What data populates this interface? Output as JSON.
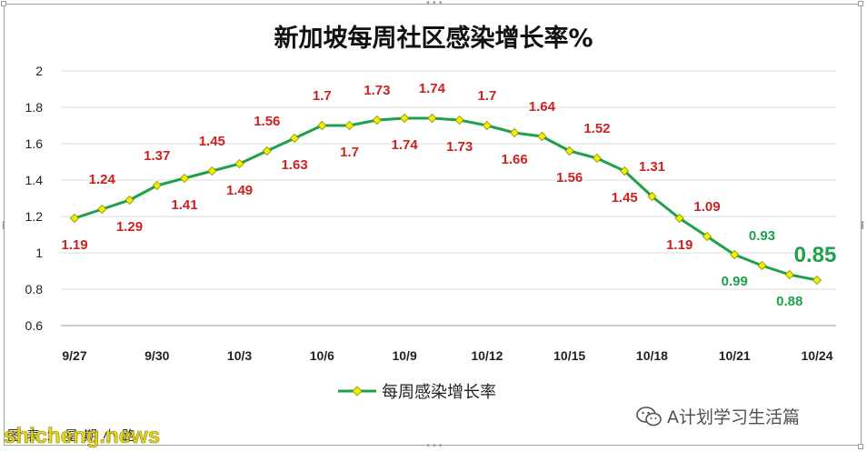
{
  "chart_data": {
    "type": "line",
    "title": "新加坡每周社区感染增长率%",
    "xlabel": "",
    "ylabel": "",
    "x_ticks": [
      "9/27",
      "9/30",
      "10/3",
      "10/6",
      "10/9",
      "10/12",
      "10/15",
      "10/18",
      "10/21",
      "10/24"
    ],
    "y_ticks": [
      "2",
      "1.8",
      "1.6",
      "1.4",
      "1.2",
      "1",
      "0.8",
      "0.6"
    ],
    "ylim": [
      0.6,
      2.0
    ],
    "grid": true,
    "legend_position": "bottom-center",
    "series": [
      {
        "name": "每周感染增长率",
        "color": "#1fa04a",
        "marker_color": "#f2ee00",
        "x": [
          "9/27",
          "9/28",
          "9/29",
          "9/30",
          "10/1",
          "10/2",
          "10/3",
          "10/4",
          "10/5",
          "10/6",
          "10/7",
          "10/8",
          "10/9",
          "10/10",
          "10/11",
          "10/12",
          "10/13",
          "10/14",
          "10/15",
          "10/16",
          "10/17",
          "10/18",
          "10/19",
          "10/20",
          "10/21",
          "10/22",
          "10/23",
          "10/24"
        ],
        "values": [
          1.19,
          1.24,
          1.29,
          1.37,
          1.41,
          1.45,
          1.49,
          1.56,
          1.63,
          1.7,
          1.7,
          1.73,
          1.74,
          1.74,
          1.73,
          1.7,
          1.66,
          1.64,
          1.56,
          1.52,
          1.45,
          1.31,
          1.19,
          1.09,
          0.99,
          0.93,
          0.88,
          0.85
        ],
        "labels": [
          "1.19",
          "1.24",
          "1.29",
          "1.37",
          "1.41",
          "1.45",
          "1.49",
          "1.56",
          "1.63",
          "1.7",
          "1.7",
          "1.73",
          "1.74",
          "1.74",
          "1.73",
          "1.7",
          "1.66",
          "1.64",
          "1.56",
          "1.52",
          "1.45",
          "1.31",
          "1.19",
          "1.09",
          "0.99",
          "0.93",
          "0.88",
          "0.85"
        ]
      }
    ],
    "label_colors": {
      "high": "#cc2222",
      "low": "#1fa04a"
    }
  },
  "watermark": "A计划学习生活篇",
  "credit": "图表：星期小路",
  "site_mark": "shicheng.news"
}
